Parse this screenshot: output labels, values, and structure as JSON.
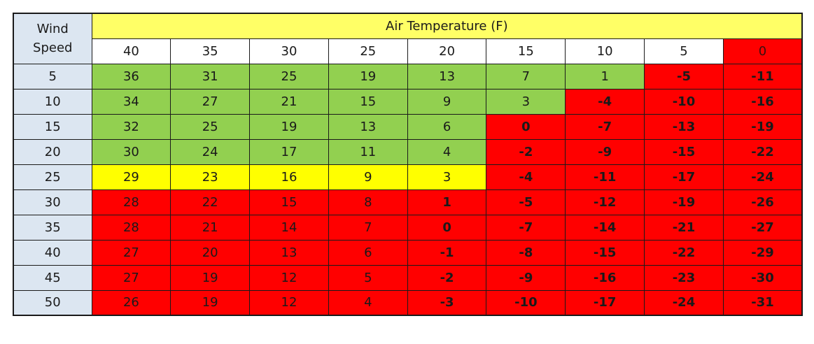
{
  "table": {
    "corner_label_line1": "Wind",
    "corner_label_line2": "Speed",
    "air_temp_label": "Air Temperature (F)"
  },
  "colors": {
    "green": "#92d050",
    "yellow": "#ffff00",
    "red": "#ff0000",
    "header_yellow": "#ffff66",
    "row_header_blue": "#dce6f1"
  },
  "chart_data": {
    "type": "table",
    "title": "",
    "row_header_label": "Wind Speed",
    "column_header_label": "Air Temperature (F)",
    "temperatures": [
      "40",
      "35",
      "30",
      "25",
      "20",
      "15",
      "10",
      "5",
      "0"
    ],
    "temperature_header_categories": [
      "white",
      "white",
      "white",
      "white",
      "white",
      "white",
      "white",
      "white",
      "red"
    ],
    "wind_speeds": [
      "5",
      "10",
      "15",
      "20",
      "25",
      "30",
      "35",
      "40",
      "45",
      "50"
    ],
    "values": [
      [
        "36",
        "31",
        "25",
        "19",
        "13",
        "7",
        "1",
        "-5",
        "-11"
      ],
      [
        "34",
        "27",
        "21",
        "15",
        "9",
        "3",
        "-4",
        "-10",
        "-16"
      ],
      [
        "32",
        "25",
        "19",
        "13",
        "6",
        "0",
        "-7",
        "-13",
        "-19"
      ],
      [
        "30",
        "24",
        "17",
        "11",
        "4",
        "-2",
        "-9",
        "-15",
        "-22"
      ],
      [
        "29",
        "23",
        "16",
        "9",
        "3",
        "-4",
        "-11",
        "-17",
        "-24"
      ],
      [
        "28",
        "22",
        "15",
        "8",
        "1",
        "-5",
        "-12",
        "-19",
        "-26"
      ],
      [
        "28",
        "21",
        "14",
        "7",
        "0",
        "-7",
        "-14",
        "-21",
        "-27"
      ],
      [
        "27",
        "20",
        "13",
        "6",
        "-1",
        "-8",
        "-15",
        "-22",
        "-29"
      ],
      [
        "27",
        "19",
        "12",
        "5",
        "-2",
        "-9",
        "-16",
        "-23",
        "-30"
      ],
      [
        "26",
        "19",
        "12",
        "4",
        "-3",
        "-10",
        "-17",
        "-24",
        "-31"
      ]
    ],
    "categories_grid": [
      [
        "green",
        "green",
        "green",
        "green",
        "green",
        "green",
        "green",
        "red-bold",
        "red-bold"
      ],
      [
        "green",
        "green",
        "green",
        "green",
        "green",
        "green",
        "red-bold",
        "red-bold",
        "red-bold"
      ],
      [
        "green",
        "green",
        "green",
        "green",
        "green",
        "red-bold",
        "red-bold",
        "red-bold",
        "red-bold"
      ],
      [
        "green",
        "green",
        "green",
        "green",
        "green",
        "red-bold",
        "red-bold",
        "red-bold",
        "red-bold"
      ],
      [
        "yellow",
        "yellow",
        "yellow",
        "yellow",
        "yellow",
        "red-bold",
        "red-bold",
        "red-bold",
        "red-bold"
      ],
      [
        "red-dark",
        "red-dark",
        "red-dark",
        "red-dark",
        "red-bold",
        "red-bold",
        "red-bold",
        "red-bold",
        "red-bold"
      ],
      [
        "red-dark",
        "red-dark",
        "red-dark",
        "red-dark",
        "red-bold",
        "red-bold",
        "red-bold",
        "red-bold",
        "red-bold"
      ],
      [
        "red-dark",
        "red-dark",
        "red-dark",
        "red-dark",
        "red-bold",
        "red-bold",
        "red-bold",
        "red-bold",
        "red-bold"
      ],
      [
        "red-dark",
        "red-dark",
        "red-dark",
        "red-dark",
        "red-bold",
        "red-bold",
        "red-bold",
        "red-bold",
        "red-bold"
      ],
      [
        "red-dark",
        "red-dark",
        "red-dark",
        "red-dark",
        "red-bold",
        "red-bold",
        "red-bold",
        "red-bold",
        "red-bold"
      ]
    ]
  }
}
